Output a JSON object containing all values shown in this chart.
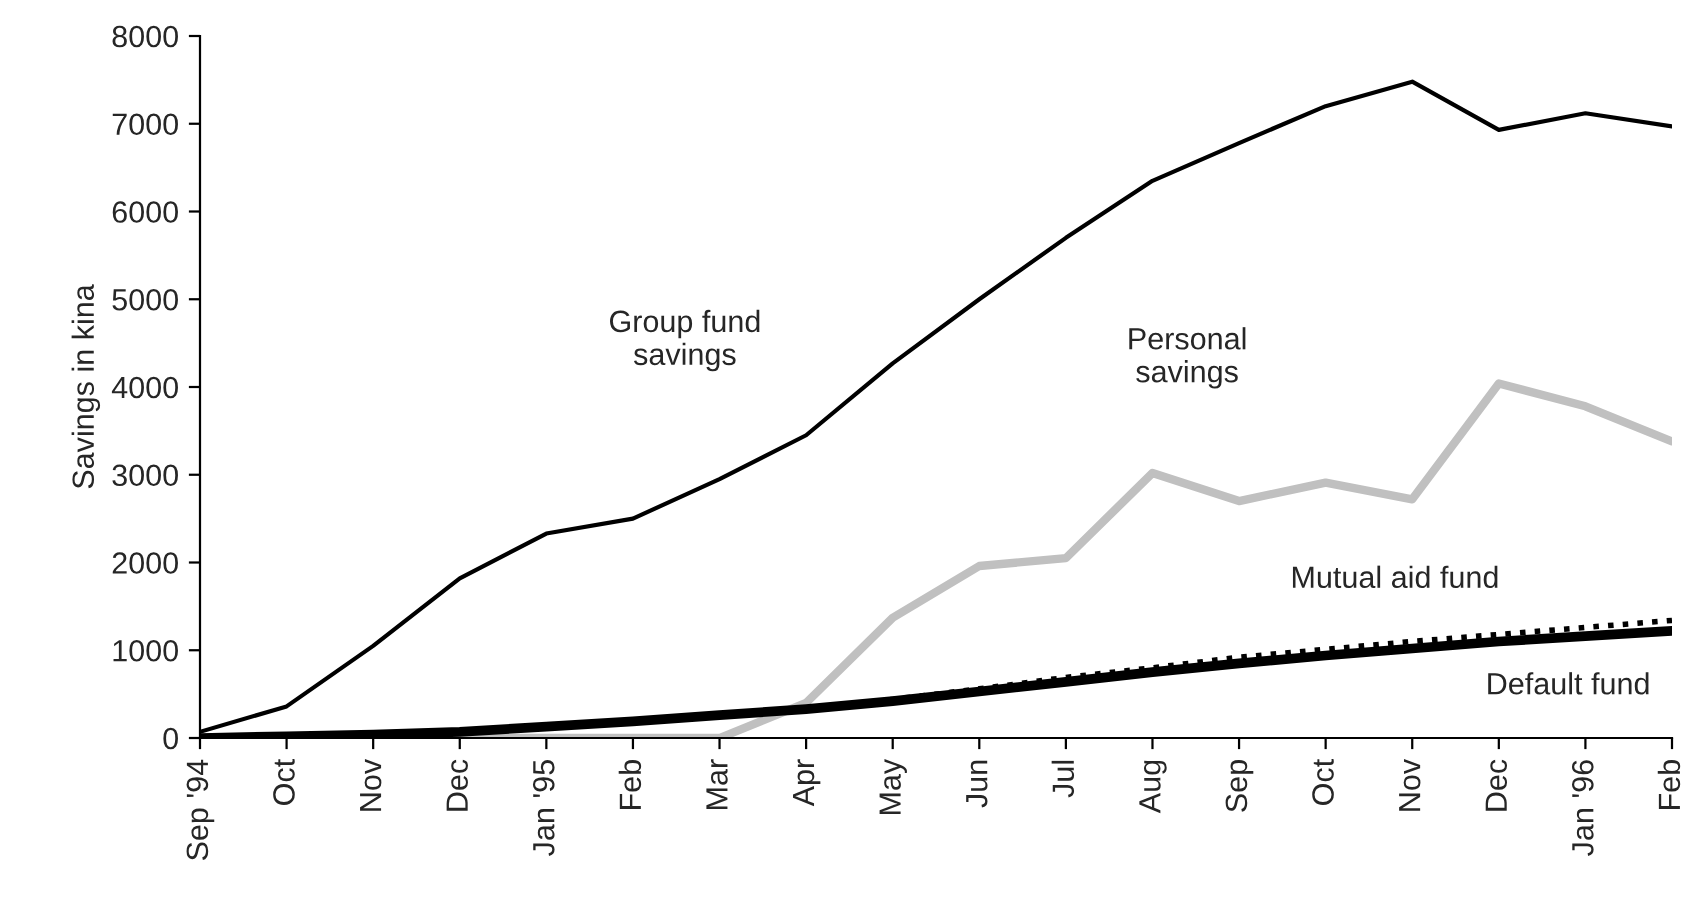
{
  "chart_data": {
    "type": "line",
    "ylabel": "Savings in kina",
    "categories": [
      "Sep '94",
      "Oct",
      "Nov",
      "Dec",
      "Jan '95",
      "Feb",
      "Mar",
      "Apr",
      "May",
      "Jun",
      "Jul",
      "Aug",
      "Sep",
      "Oct",
      "Nov",
      "Dec",
      "Jan '96",
      "Feb"
    ],
    "series": [
      {
        "name": "Group fund savings",
        "color": "#000000",
        "line_style": "solid",
        "values": [
          70,
          360,
          1050,
          1820,
          2330,
          2500,
          2950,
          3450,
          4270,
          5000,
          5700,
          6350,
          6780,
          7200,
          7480,
          6930,
          7120,
          6970
        ]
      },
      {
        "name": "Personal savings",
        "color": "#c0c0c0",
        "line_style": "solid",
        "values": [
          0,
          0,
          0,
          0,
          0,
          0,
          0,
          400,
          1370,
          1960,
          2050,
          3020,
          2700,
          2910,
          2720,
          4040,
          3780,
          3380
        ]
      },
      {
        "name": "Mutual aid fund",
        "color": "#000000",
        "line_style": "dotted",
        "values": [
          0,
          20,
          40,
          70,
          130,
          190,
          260,
          330,
          440,
          560,
          690,
          800,
          920,
          1010,
          1100,
          1180,
          1260,
          1340
        ]
      },
      {
        "name": "Default fund",
        "color": "#000000",
        "line_style": "solid",
        "values": [
          0,
          20,
          40,
          70,
          130,
          190,
          260,
          330,
          420,
          530,
          640,
          750,
          850,
          940,
          1020,
          1100,
          1160,
          1220
        ]
      }
    ],
    "ylim": [
      0,
      8000
    ],
    "yticks": [
      0,
      1000,
      2000,
      3000,
      4000,
      5000,
      6000,
      7000,
      8000
    ],
    "grid": false,
    "legend": false,
    "marker": "none"
  }
}
